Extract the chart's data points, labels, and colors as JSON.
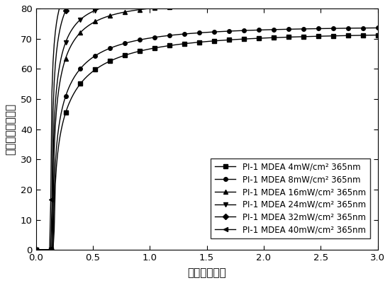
{
  "xlabel": "时间（分钟）",
  "ylabel": "转化率（百分比）",
  "xlim": [
    0.0,
    3.0
  ],
  "ylim": [
    0,
    80
  ],
  "xticks": [
    0.0,
    0.5,
    1.0,
    1.5,
    2.0,
    2.5,
    3.0
  ],
  "yticks": [
    0,
    10,
    20,
    30,
    40,
    50,
    60,
    70,
    80
  ],
  "series": [
    {
      "label": "PI-1 MDEA 4mW/cm² 365nm",
      "marker": "s",
      "asymptote": 72.0,
      "k": 2.8,
      "t0": 0.16,
      "power": 0.45
    },
    {
      "label": "PI-1 MDEA 8mW/cm² 365nm",
      "marker": "o",
      "asymptote": 74.0,
      "k": 3.2,
      "t0": 0.155,
      "power": 0.45
    },
    {
      "label": "PI-1 MDEA 16mW/cm² 365nm",
      "marker": "^",
      "asymptote": 82.0,
      "k": 4.0,
      "t0": 0.15,
      "power": 0.45
    },
    {
      "label": "PI-1 MDEA 24mW/cm² 365nm",
      "marker": "v",
      "asymptote": 84.0,
      "k": 4.5,
      "t0": 0.145,
      "power": 0.45
    },
    {
      "label": "PI-1 MDEA 32mW/cm² 365nm",
      "marker": "D",
      "asymptote": 90.0,
      "k": 5.5,
      "t0": 0.14,
      "power": 0.45
    },
    {
      "label": "PI-1 MDEA 40mW/cm² 365nm",
      "marker": "<",
      "asymptote": 92.0,
      "k": 6.5,
      "t0": 0.13,
      "power": 0.45
    }
  ],
  "line_color": "black",
  "markersize": 4,
  "legend_fontsize": 8.5,
  "xlabel_spacing": "时  间（分  钟）",
  "ylabel_spacing": "转化率（百分比）"
}
